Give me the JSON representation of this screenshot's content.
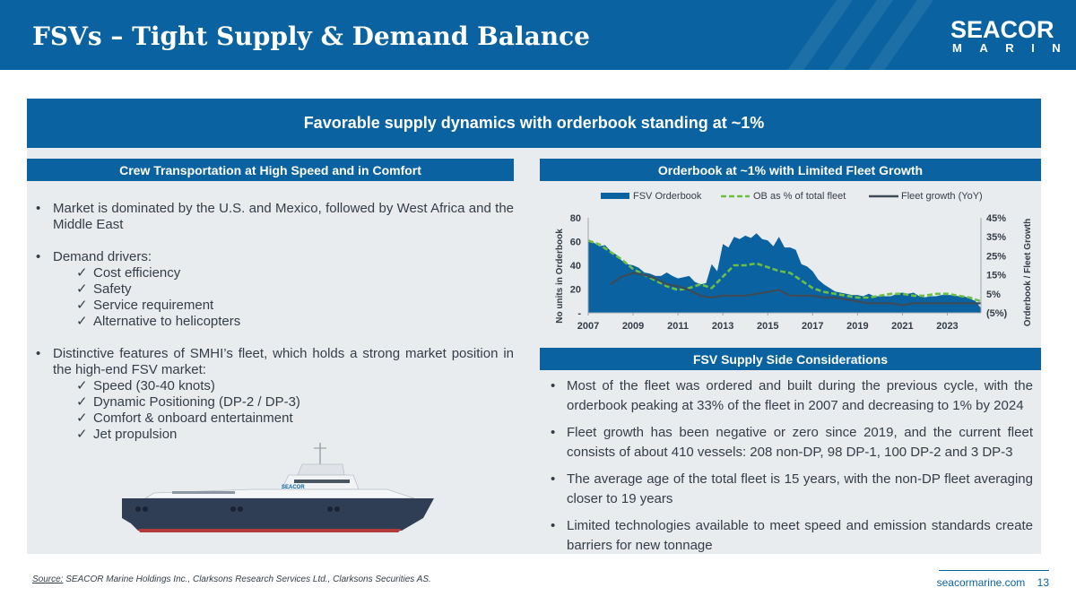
{
  "header": {
    "title": "FSVs – Tight Supply & Demand Balance"
  },
  "logo": {
    "top": "SEACOR",
    "bottom": "MARINE"
  },
  "banner": "Favorable supply dynamics with orderbook standing at ~1%",
  "left": {
    "heading": "Crew Transportation at High Speed and in Comfort",
    "bullets": [
      {
        "text": "Market is dominated by the U.S. and Mexico, followed by West Africa and the Middle East",
        "subs": []
      },
      {
        "text": "Demand drivers:",
        "subs": [
          "Cost efficiency",
          "Safety",
          "Service requirement",
          "Alternative to helicopters"
        ]
      },
      {
        "text": "Distinctive features of SMHI’s fleet, which holds a strong market position in the high-end FSV market:",
        "subs": [
          "Speed (30-40 knots)",
          "Dynamic Positioning (DP-2 / DP-3)",
          "Comfort & onboard entertainment",
          "Jet propulsion"
        ]
      }
    ],
    "check_mark": "✓",
    "ship_label": "SEACOR"
  },
  "right_top": {
    "heading": "Orderbook at ~1% with Limited Fleet Growth"
  },
  "right_bottom": {
    "heading": "FSV Supply Side Considerations",
    "bullets": [
      "Most of the fleet was ordered and built during the previous cycle, with the orderbook peaking at 33% of the fleet in 2007 and decreasing to 1% by 2024",
      "Fleet growth has been negative or zero since 2019, and the current fleet consists of about 410 vessels: 208 non-DP, 98 DP-1, 100 DP-2 and 3 DP-3",
      "The average age of the total fleet is 15 years, with the non-DP fleet averaging closer to 19 years",
      "Limited technologies available to meet speed and emission standards create barriers for new tonnage"
    ]
  },
  "chart_data": {
    "type": "area",
    "title": "Orderbook at ~1% with Limited Fleet Growth",
    "legend": [
      "FSV Orderbook",
      "OB as % of total fleet",
      "Fleet growth (YoY)"
    ],
    "ylabel_left": "No units in Orderbook",
    "ylabel_right": "Orderbook / Fleet Growth",
    "x_ticks": [
      "2007",
      "2009",
      "2011",
      "2013",
      "2015",
      "2017",
      "2019",
      "2021",
      "2023"
    ],
    "y_left_ticks": [
      "-",
      "20",
      "40",
      "60",
      "80"
    ],
    "y_right_ticks": [
      "(5%)",
      "5%",
      "15%",
      "25%",
      "35%",
      "45%"
    ],
    "y_left_range": [
      0,
      80
    ],
    "y_right_range": [
      -5,
      45
    ],
    "x_range": [
      2007,
      2024.5
    ],
    "series": [
      {
        "name": "FSV Orderbook",
        "style": "area",
        "axis": "left",
        "color": "#0a63a0",
        "x": [
          2007,
          2007.25,
          2007.5,
          2007.75,
          2008,
          2008.25,
          2008.5,
          2008.75,
          2009,
          2009.25,
          2009.5,
          2009.75,
          2010,
          2010.25,
          2010.5,
          2010.75,
          2011,
          2011.25,
          2011.5,
          2011.75,
          2012,
          2012.25,
          2012.5,
          2012.75,
          2013,
          2013.25,
          2013.5,
          2013.75,
          2014,
          2014.25,
          2014.5,
          2014.75,
          2015,
          2015.25,
          2015.5,
          2015.75,
          2016,
          2016.25,
          2016.5,
          2016.75,
          2017,
          2017.25,
          2017.5,
          2017.75,
          2018,
          2018.25,
          2018.5,
          2018.75,
          2019,
          2019.25,
          2019.5,
          2019.75,
          2020,
          2020.25,
          2020.5,
          2020.75,
          2021,
          2021.25,
          2021.5,
          2021.75,
          2022,
          2022.25,
          2022.5,
          2022.75,
          2023,
          2023.25,
          2023.5,
          2023.75,
          2024,
          2024.25,
          2024.5
        ],
        "values": [
          60,
          59,
          56,
          57,
          52,
          49,
          44,
          41,
          40,
          38,
          34,
          33,
          31,
          31,
          34,
          31,
          29,
          30,
          31,
          26,
          24,
          25,
          41,
          35,
          58,
          55,
          64,
          62,
          65,
          63,
          67,
          62,
          61,
          56,
          64,
          55,
          55,
          53,
          41,
          39,
          35,
          28,
          24,
          21,
          18,
          17,
          16,
          15,
          15,
          14,
          16,
          14,
          14,
          14,
          14,
          16,
          17,
          16,
          17,
          14,
          13,
          14,
          14,
          15,
          15,
          15,
          14,
          14,
          12,
          10,
          4
        ]
      },
      {
        "name": "OB as % of total fleet",
        "style": "dashed",
        "axis": "right",
        "color": "#6cbf44",
        "x": [
          2007,
          2007.5,
          2008,
          2008.5,
          2009,
          2009.5,
          2010,
          2010.5,
          2011,
          2011.5,
          2012,
          2012.5,
          2013,
          2013.5,
          2014,
          2014.5,
          2015,
          2015.5,
          2016,
          2016.5,
          2017,
          2017.5,
          2018,
          2018.5,
          2019,
          2019.5,
          2020,
          2020.5,
          2021,
          2021.5,
          2022,
          2022.5,
          2023,
          2023.5,
          2024,
          2024.5
        ],
        "values": [
          33,
          31,
          27,
          23,
          18,
          15,
          12,
          9,
          7,
          8,
          10,
          8,
          14,
          20,
          20,
          21,
          19,
          17,
          16,
          12,
          8,
          6,
          5,
          4,
          3,
          3,
          4,
          5,
          5,
          4,
          4,
          5,
          5,
          4,
          3,
          1
        ]
      },
      {
        "name": "Fleet growth (YoY)",
        "style": "line",
        "axis": "right",
        "color": "#3d4a57",
        "x": [
          2008,
          2008.5,
          2009,
          2009.5,
          2010,
          2010.5,
          2011,
          2011.5,
          2012,
          2012.5,
          2013,
          2013.5,
          2014,
          2014.5,
          2015,
          2015.5,
          2016,
          2016.5,
          2017,
          2017.5,
          2018,
          2018.5,
          2019,
          2019.5,
          2020,
          2020.5,
          2021,
          2021.5,
          2022,
          2022.5,
          2023,
          2023.5,
          2024,
          2024.5
        ],
        "values": [
          10,
          14,
          16,
          15,
          13,
          10,
          9,
          7,
          4,
          3,
          4,
          4,
          4,
          5,
          6,
          7,
          4,
          4,
          4,
          3,
          3,
          2,
          1,
          0,
          0,
          0,
          -1,
          0,
          0,
          0,
          0,
          0,
          0,
          0
        ]
      }
    ]
  },
  "footer": {
    "source_label": "Source:",
    "source_text": " SEACOR Marine Holdings Inc., Clarksons Research Services Ltd., Clarksons Securities AS.",
    "url": "seacormarine.com",
    "page": "13"
  },
  "colors": {
    "brand_blue": "#0a63a0",
    "panel_gray": "#e9ecef",
    "green": "#6cbf44",
    "dark": "#3d4a57"
  }
}
